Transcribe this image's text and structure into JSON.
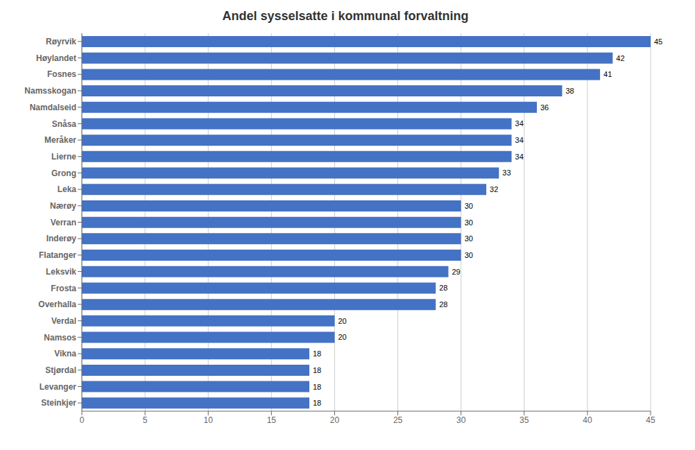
{
  "chart_data": {
    "type": "bar",
    "orientation": "horizontal",
    "title": "Andel sysselsatte i kommunal forvaltning",
    "categories": [
      "Røyrvik",
      "Høylandet",
      "Fosnes",
      "Namsskogan",
      "Namdalseid",
      "Snåsa",
      "Meråker",
      "Lierne",
      "Grong",
      "Leka",
      "Nærøy",
      "Verran",
      "Inderøy",
      "Flatanger",
      "Leksvik",
      "Frosta",
      "Overhalla",
      "Verdal",
      "Namsos",
      "Vikna",
      "Stjørdal",
      "Levanger",
      "Steinkjer"
    ],
    "values": [
      45,
      42,
      41,
      38,
      36,
      34,
      34,
      34,
      33,
      32,
      30,
      30,
      30,
      30,
      29,
      28,
      28,
      20,
      20,
      18,
      18,
      18,
      18
    ],
    "color": "#4472C4",
    "xlim": [
      0,
      45
    ],
    "xticks": [
      0,
      5,
      10,
      15,
      20,
      25,
      30,
      35,
      40,
      45
    ],
    "grid": true,
    "data_labels": true
  }
}
